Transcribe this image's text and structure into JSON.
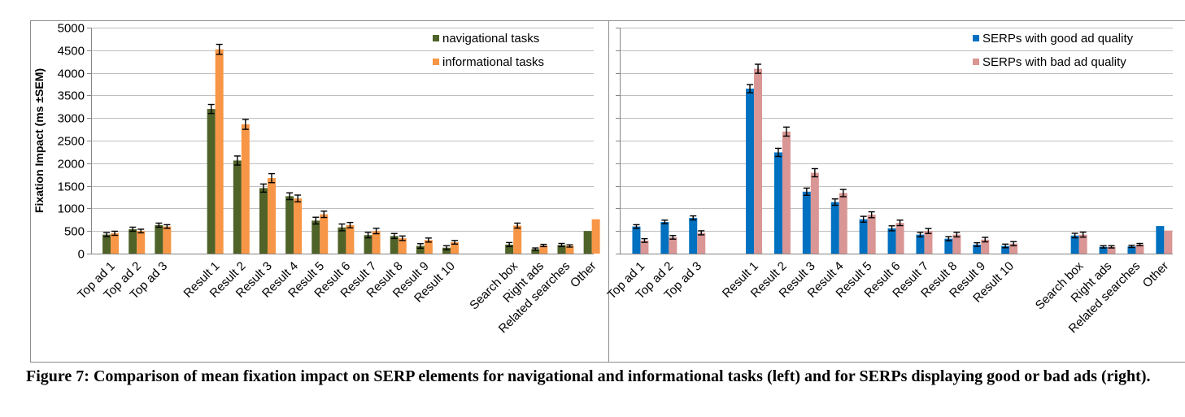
{
  "chart_data": [
    {
      "type": "bar",
      "ylabel": "Fixation Impact (ms ±SEM)",
      "xlabel": "",
      "ylim": [
        0,
        5000
      ],
      "yticks": [
        0,
        500,
        1000,
        1500,
        2000,
        2500,
        3000,
        3500,
        4000,
        4500,
        5000
      ],
      "grid": true,
      "legend_position": "top-right",
      "groups": [
        [
          "Top ad 1",
          "Top ad 2",
          "Top ad 3"
        ],
        [
          "Result 1",
          "Result 2",
          "Result 3",
          "Result 4",
          "Result 5",
          "Result 6",
          "Result 7",
          "Result 8",
          "Result 9",
          "Result 10"
        ],
        [
          "Search box",
          "Right ads",
          "Related searches",
          "Other"
        ]
      ],
      "categories": [
        "Top ad 1",
        "Top ad 2",
        "Top ad 3",
        "Result 1",
        "Result 2",
        "Result 3",
        "Result 4",
        "Result 5",
        "Result 6",
        "Result 7",
        "Result 8",
        "Result 9",
        "Result 10",
        "Search box",
        "Right ads",
        "Related searches",
        "Other"
      ],
      "series": [
        {
          "name": "navigational tasks",
          "color": "#4f6228",
          "values": [
            420,
            540,
            630,
            3200,
            2060,
            1450,
            1270,
            730,
            580,
            410,
            390,
            170,
            130,
            200,
            100,
            190,
            500
          ],
          "sem": [
            45,
            45,
            45,
            100,
            100,
            90,
            75,
            75,
            75,
            60,
            55,
            50,
            45,
            45,
            25,
            35,
            null
          ]
        },
        {
          "name": "informational tasks",
          "color": "#f79646",
          "values": [
            450,
            500,
            600,
            4520,
            2860,
            1670,
            1220,
            870,
            630,
            500,
            340,
            300,
            250,
            620,
            180,
            170,
            760
          ],
          "sem": [
            45,
            40,
            40,
            110,
            110,
            100,
            75,
            70,
            60,
            60,
            50,
            45,
            40,
            55,
            25,
            25,
            null
          ]
        }
      ]
    },
    {
      "type": "bar",
      "ylabel": "",
      "xlabel": "",
      "ylim": [
        0,
        5000
      ],
      "grid": true,
      "legend_position": "top-right",
      "groups": [
        [
          "Top ad 1",
          "Top ad 2",
          "Top ad 3"
        ],
        [
          "Result 1",
          "Result 2",
          "Result 3",
          "Result 4",
          "Result 5",
          "Result 6",
          "Result 7",
          "Result 8",
          "Result 9",
          "Result 10"
        ],
        [
          "Search box",
          "Right ads",
          "Related searches",
          "Other"
        ]
      ],
      "categories": [
        "Top ad 1",
        "Top ad 2",
        "Top ad 3",
        "Result 1",
        "Result 2",
        "Result 3",
        "Result 4",
        "Result 5",
        "Result 6",
        "Result 7",
        "Result 8",
        "Result 9",
        "Result 10",
        "Search box",
        "Right ads",
        "Related searches",
        "Other"
      ],
      "series": [
        {
          "name": "SERPs with good ad quality",
          "color": "#0070c0",
          "values": [
            600,
            700,
            790,
            3650,
            2240,
            1370,
            1140,
            760,
            560,
            420,
            330,
            200,
            170,
            400,
            150,
            160,
            610
          ],
          "sem": [
            40,
            40,
            45,
            90,
            90,
            80,
            70,
            65,
            55,
            50,
            45,
            40,
            40,
            50,
            25,
            25,
            null
          ]
        },
        {
          "name": "SERPs with bad ad quality",
          "color": "#d99694",
          "values": [
            290,
            360,
            460,
            4090,
            2700,
            1790,
            1340,
            860,
            680,
            500,
            420,
            310,
            220,
            420,
            150,
            200,
            510
          ],
          "sem": [
            40,
            40,
            45,
            100,
            100,
            90,
            80,
            65,
            60,
            55,
            50,
            50,
            45,
            55,
            25,
            25,
            null
          ]
        }
      ]
    }
  ],
  "caption": "Figure 7: Comparison of mean fixation impact on SERP elements for navigational and informational tasks (left) and for SERPs displaying good or bad ads (right)."
}
